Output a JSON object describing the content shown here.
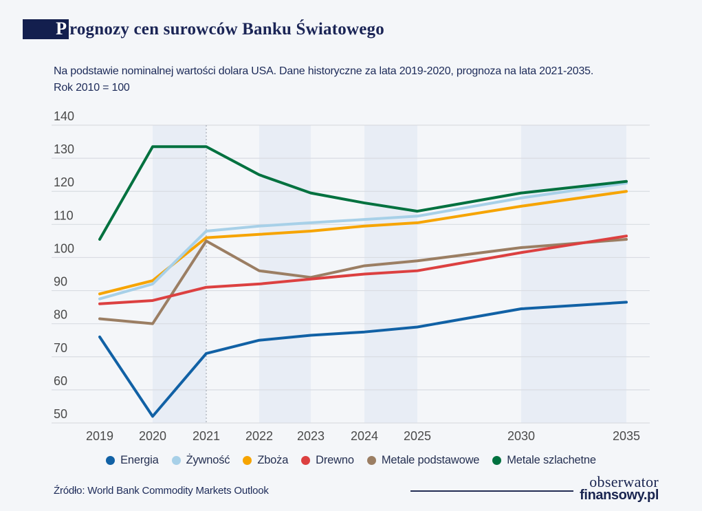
{
  "header": {
    "drop_cap": "P",
    "title_rest": "rognozy cen surowców Banku Światowego",
    "subtitle_line1": "Na podstawie nominalnej wartości dolara USA. Dane historyczne za lata 2019-2020, prognoza na lata 2021-2035.",
    "subtitle_line2": "Rok 2010 = 100"
  },
  "footer": {
    "source": "Źródło: World Bank Commodity Markets Outlook",
    "logo_line1": "obserwator",
    "logo_line2": "finansowy.pl"
  },
  "colors": {
    "background": "#f4f6f9",
    "band": "#e8edf5",
    "gridline": "#d9dce2",
    "axis_text": "#4a4a4a",
    "navy": "#1b2556",
    "divider": "#a7acb5"
  },
  "chart_data": {
    "type": "line",
    "title": "Prognozy cen surowców Banku Światowego",
    "xlabel": "",
    "ylabel": "",
    "x": [
      2019,
      2020,
      2021,
      2022,
      2023,
      2024,
      2025,
      2030,
      2035
    ],
    "series": [
      {
        "name": "Energia",
        "color": "#1161a5",
        "values": [
          76,
          52,
          71,
          75,
          76.5,
          77.5,
          79,
          84.5,
          86.5
        ]
      },
      {
        "name": "Żywność",
        "color": "#a7d0e8",
        "values": [
          87.5,
          92,
          108,
          109.5,
          110.5,
          111.5,
          112.5,
          118,
          122.5
        ]
      },
      {
        "name": "Zboża",
        "color": "#f6a400",
        "values": [
          89,
          93,
          106,
          107,
          108,
          109.5,
          110.5,
          115.5,
          120
        ]
      },
      {
        "name": "Drewno",
        "color": "#dc4040",
        "values": [
          86,
          87,
          91,
          92,
          93.5,
          95,
          96,
          101.5,
          106.5
        ]
      },
      {
        "name": "Metale podstawowe",
        "color": "#9b7e63",
        "values": [
          81.5,
          80,
          105,
          96,
          94,
          97.5,
          99,
          103,
          105.5
        ]
      },
      {
        "name": "Metale szlachetne",
        "color": "#00713f",
        "values": [
          105.5,
          133.5,
          133.5,
          125,
          119.5,
          116.5,
          114,
          119.5,
          123
        ]
      }
    ],
    "ylim": [
      50,
      140
    ],
    "y_ticks": [
      140,
      130,
      120,
      110,
      100,
      90,
      80,
      70,
      60,
      50
    ],
    "bands": [
      [
        2020,
        2021
      ],
      [
        2022,
        2023
      ],
      [
        2024,
        2025
      ],
      [
        2030,
        2035
      ]
    ],
    "divider_year": 2021,
    "grid": "horizontal",
    "legend_position": "bottom"
  }
}
